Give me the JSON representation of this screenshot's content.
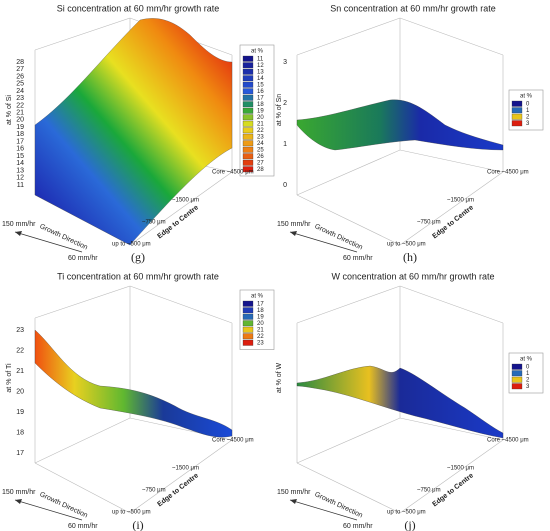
{
  "panels": [
    {
      "title": "Si concentration at 60 mm/hr growth rate",
      "z_label": "at % of Si",
      "z_ticks": [
        "11",
        "12",
        "13",
        "14",
        "15",
        "16",
        "17",
        "18",
        "19",
        "20",
        "21",
        "22",
        "23",
        "24",
        "25",
        "26",
        "27",
        "28"
      ],
      "legend": {
        "title": "at %",
        "items": [
          "11",
          "12",
          "13",
          "14",
          "15",
          "16",
          "17",
          "18",
          "19",
          "20",
          "21",
          "22",
          "23",
          "24",
          "25",
          "26",
          "27",
          "28"
        ]
      },
      "growth_labels": [
        "150 mm/hr",
        "Growth Direction",
        "60 mm/hr"
      ],
      "edge_labels": [
        "up to ~500 μm",
        "~750 μm",
        "~1500 μm",
        "Core ~4500 μm"
      ],
      "edge_axis_label": "Edge to Centre",
      "caption": "(g)"
    },
    {
      "title": "Sn concentration at 60 mm/hr growth rate",
      "z_label": "at % of Sn",
      "z_ticks": [
        "0",
        "1",
        "2",
        "3"
      ],
      "legend": {
        "title": "at %",
        "items": [
          "0",
          "1",
          "2",
          "3"
        ]
      },
      "growth_labels": [
        "150 mm/hr",
        "Growth Direction",
        "60 mm/hr"
      ],
      "edge_labels": [
        "up to ~500 μm",
        "~750 μm",
        "~1500 μm",
        "Core ~4500 μm"
      ],
      "edge_axis_label": "Edge to Centre",
      "caption": "(h)"
    },
    {
      "title": "Ti concentration at 60 mm/hr growth rate",
      "z_label": "at % of Ti",
      "z_ticks": [
        "17",
        "18",
        "19",
        "20",
        "21",
        "22",
        "23"
      ],
      "legend": {
        "title": "at %",
        "items": [
          "17",
          "18",
          "19",
          "20",
          "21",
          "22",
          "23"
        ]
      },
      "growth_labels": [
        "150 mm/hr",
        "Growth Direction",
        "60 mm/hr"
      ],
      "edge_labels": [
        "up to ~500 μm",
        "~750 μm",
        "~1500 μm",
        "Core ~4500 μm"
      ],
      "edge_axis_label": "Edge to Centre",
      "caption": "(i)"
    },
    {
      "title": "W concentration at 60 mm/hr growth rate",
      "z_label": "at % of W",
      "legend": {
        "title": "at %",
        "items": [
          "0",
          "1",
          "2",
          "3"
        ]
      },
      "growth_labels": [
        "150 mm/hr",
        "Growth Direction",
        "60 mm/hr"
      ],
      "edge_labels": [
        "up to ~500 μm",
        "~750 μm",
        "~1500 μm",
        "Core ~4500 μm"
      ],
      "edge_axis_label": "Edge to Centre",
      "caption": "(j)"
    }
  ]
}
